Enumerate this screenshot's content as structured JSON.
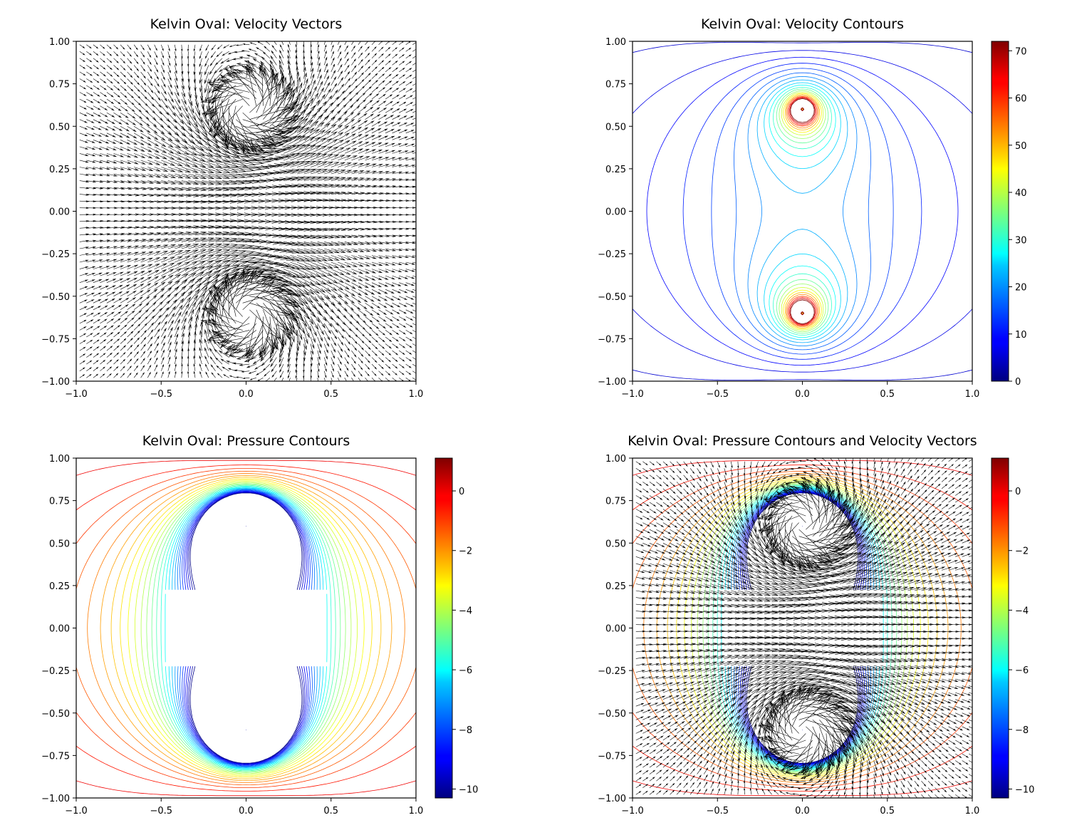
{
  "chart_data": [
    {
      "type": "quiver",
      "title": "Kelvin Oval: Velocity Vectors",
      "xlim": [
        -1,
        1
      ],
      "ylim": [
        -1,
        1
      ],
      "xticks": [
        "−1.0",
        "−0.5",
        "0.0",
        "0.5",
        "1.0"
      ],
      "yticks": [
        "1.00",
        "0.75",
        "0.50",
        "0.25",
        "0.00",
        "−0.25",
        "−0.50",
        "−0.75",
        "−1.00"
      ],
      "flow": {
        "vortex_y": [
          0.6,
          -0.6
        ],
        "oval_half_length": 0.47,
        "oval_half_height": 0.21,
        "grid_step": 0.04
      },
      "colorbar": null
    },
    {
      "type": "contour",
      "title": "Kelvin Oval: Velocity Contours",
      "xlim": [
        -1,
        1
      ],
      "ylim": [
        -1,
        1
      ],
      "xticks": [
        "−1.0",
        "−0.5",
        "0.0",
        "0.5",
        "1.0"
      ],
      "yticks": [
        "1.00",
        "0.75",
        "0.50",
        "0.25",
        "0.00",
        "−0.25",
        "−0.50",
        "−0.75",
        "−1.00"
      ],
      "colormap": "jet",
      "colorbar": {
        "range": [
          0,
          72
        ],
        "ticks": [
          "0",
          "10",
          "20",
          "30",
          "40",
          "50",
          "60",
          "70"
        ],
        "tick_values": [
          0,
          10,
          20,
          30,
          40,
          50,
          60,
          70
        ]
      },
      "level_range": [
        3,
        72
      ]
    },
    {
      "type": "contour",
      "title": "Kelvin Oval: Pressure Contours",
      "xlim": [
        -1,
        1
      ],
      "ylim": [
        -1,
        1
      ],
      "xticks": [
        "−1.0",
        "−0.5",
        "0.0",
        "0.5",
        "1.0"
      ],
      "yticks": [
        "1.00",
        "0.75",
        "0.50",
        "0.25",
        "0.00",
        "−0.25",
        "−0.50",
        "−0.75",
        "−1.00"
      ],
      "colormap": "jet",
      "colorbar": {
        "range": [
          -10.3,
          1.1
        ],
        "ticks": [
          "0",
          "−2",
          "−4",
          "−6",
          "−8",
          "−10"
        ],
        "tick_values": [
          0,
          -2,
          -4,
          -6,
          -8,
          -10
        ]
      },
      "level_range": [
        -10.2,
        1.0
      ]
    },
    {
      "type": "contour+quiver",
      "title": "Kelvin Oval: Pressure Contours and Velocity Vectors",
      "xlim": [
        -1,
        1
      ],
      "ylim": [
        -1,
        1
      ],
      "xticks": [
        "−1.0",
        "−0.5",
        "0.0",
        "0.5",
        "1.0"
      ],
      "yticks": [
        "1.00",
        "0.75",
        "0.50",
        "0.25",
        "0.00",
        "−0.25",
        "−0.50",
        "−0.75",
        "−1.00"
      ],
      "colormap": "jet",
      "colorbar": {
        "range": [
          -10.3,
          1.1
        ],
        "ticks": [
          "0",
          "−2",
          "−4",
          "−6",
          "−8",
          "−10"
        ],
        "tick_values": [
          0,
          -2,
          -4,
          -6,
          -8,
          -10
        ]
      },
      "level_range": [
        -10.2,
        1.0
      ]
    }
  ]
}
